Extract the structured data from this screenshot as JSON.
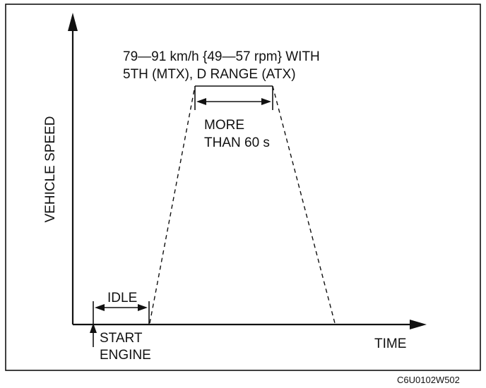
{
  "diagram": {
    "y_axis_label": "VEHICLE SPEED",
    "x_axis_label": "TIME",
    "speed_condition_line1": "79—91 km/h {49—57 rpm} WITH",
    "speed_condition_line2": "5TH (MTX), D RANGE (ATX)",
    "duration_line1": "MORE",
    "duration_line2": "THAN 60 s",
    "idle_label": "IDLE",
    "start_line1": "START",
    "start_line2": "ENGINE",
    "figure_code": "C6U0102W502"
  }
}
